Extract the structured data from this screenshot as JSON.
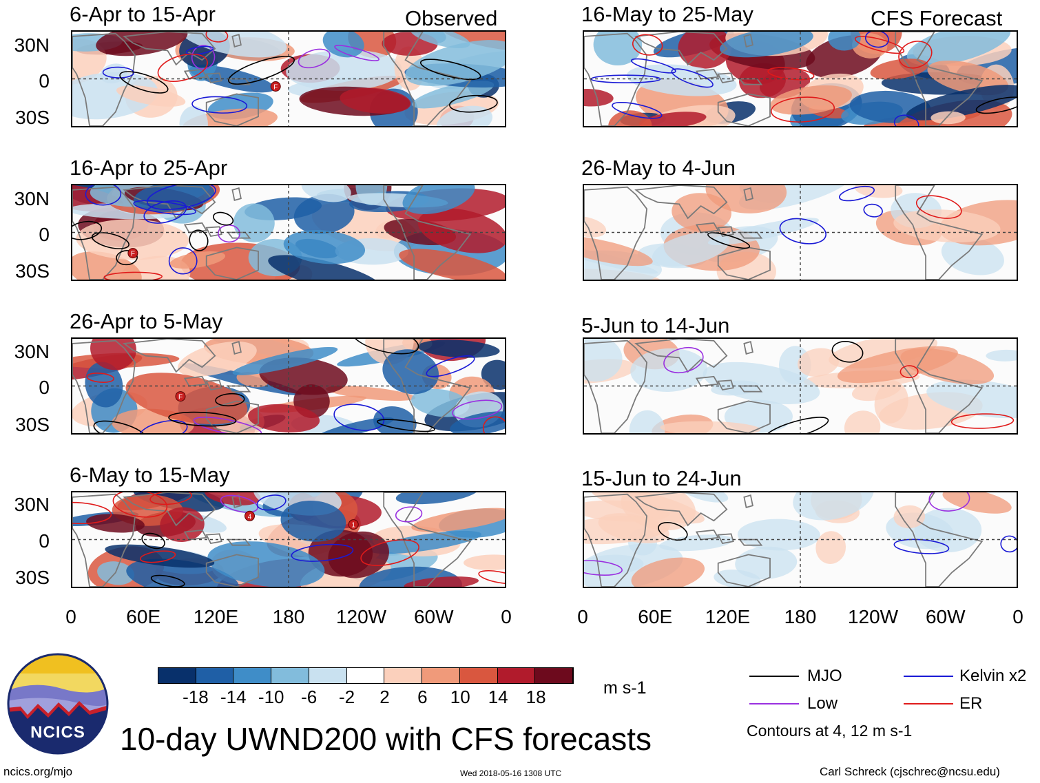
{
  "figure_title": "10-day UWND200 with CFS forecasts",
  "headers": {
    "observed": "Observed",
    "forecast": "CFS Forecast"
  },
  "panels": [
    {
      "title": "6-Apr to 15-Apr",
      "kind": "observed"
    },
    {
      "title": "16-Apr to 25-Apr",
      "kind": "observed"
    },
    {
      "title": "26-Apr to 5-May",
      "kind": "observed"
    },
    {
      "title": "6-May to 15-May",
      "kind": "observed"
    },
    {
      "title": "16-May to 25-May",
      "kind": "forecast"
    },
    {
      "title": "26-May to 4-Jun",
      "kind": "forecast"
    },
    {
      "title": "5-Jun to 14-Jun",
      "kind": "forecast"
    },
    {
      "title": "15-Jun to 24-Jun",
      "kind": "forecast"
    }
  ],
  "lat_labels": [
    "30N",
    "0",
    "30S"
  ],
  "lon_labels": [
    "0",
    "60E",
    "120E",
    "180",
    "120W",
    "60W",
    "0"
  ],
  "colorbar": {
    "unit": "m s-1",
    "tick_labels": [
      "-18",
      "-14",
      "-10",
      "-6",
      "-2",
      "2",
      "6",
      "10",
      "14",
      "18"
    ],
    "colors": [
      "#08306b",
      "#1f5fa6",
      "#3f8dc8",
      "#82bcdc",
      "#c9e1f0",
      "#ffffff",
      "#fbd0bc",
      "#f09a7a",
      "#d9573f",
      "#b11b2c",
      "#6d0a1d"
    ]
  },
  "legend": {
    "items": [
      {
        "label": "MJO",
        "color": "#000000"
      },
      {
        "label": "Kelvin x2",
        "color": "#1a1ad6"
      },
      {
        "label": "Low",
        "color": "#9a30e0"
      },
      {
        "label": "ER",
        "color": "#e01a1a"
      }
    ],
    "note": "Contours at 4, 12 m s-1"
  },
  "logo": {
    "text": "NCICS"
  },
  "footer": {
    "left": "ncics.org/mjo",
    "center": "Wed 2018-05-16 1308 UTC",
    "right": "Carl Schreck (cjschrec@ncsu.edu)"
  },
  "storm_markers": [
    "F",
    "F",
    "F",
    "4",
    "1"
  ]
}
